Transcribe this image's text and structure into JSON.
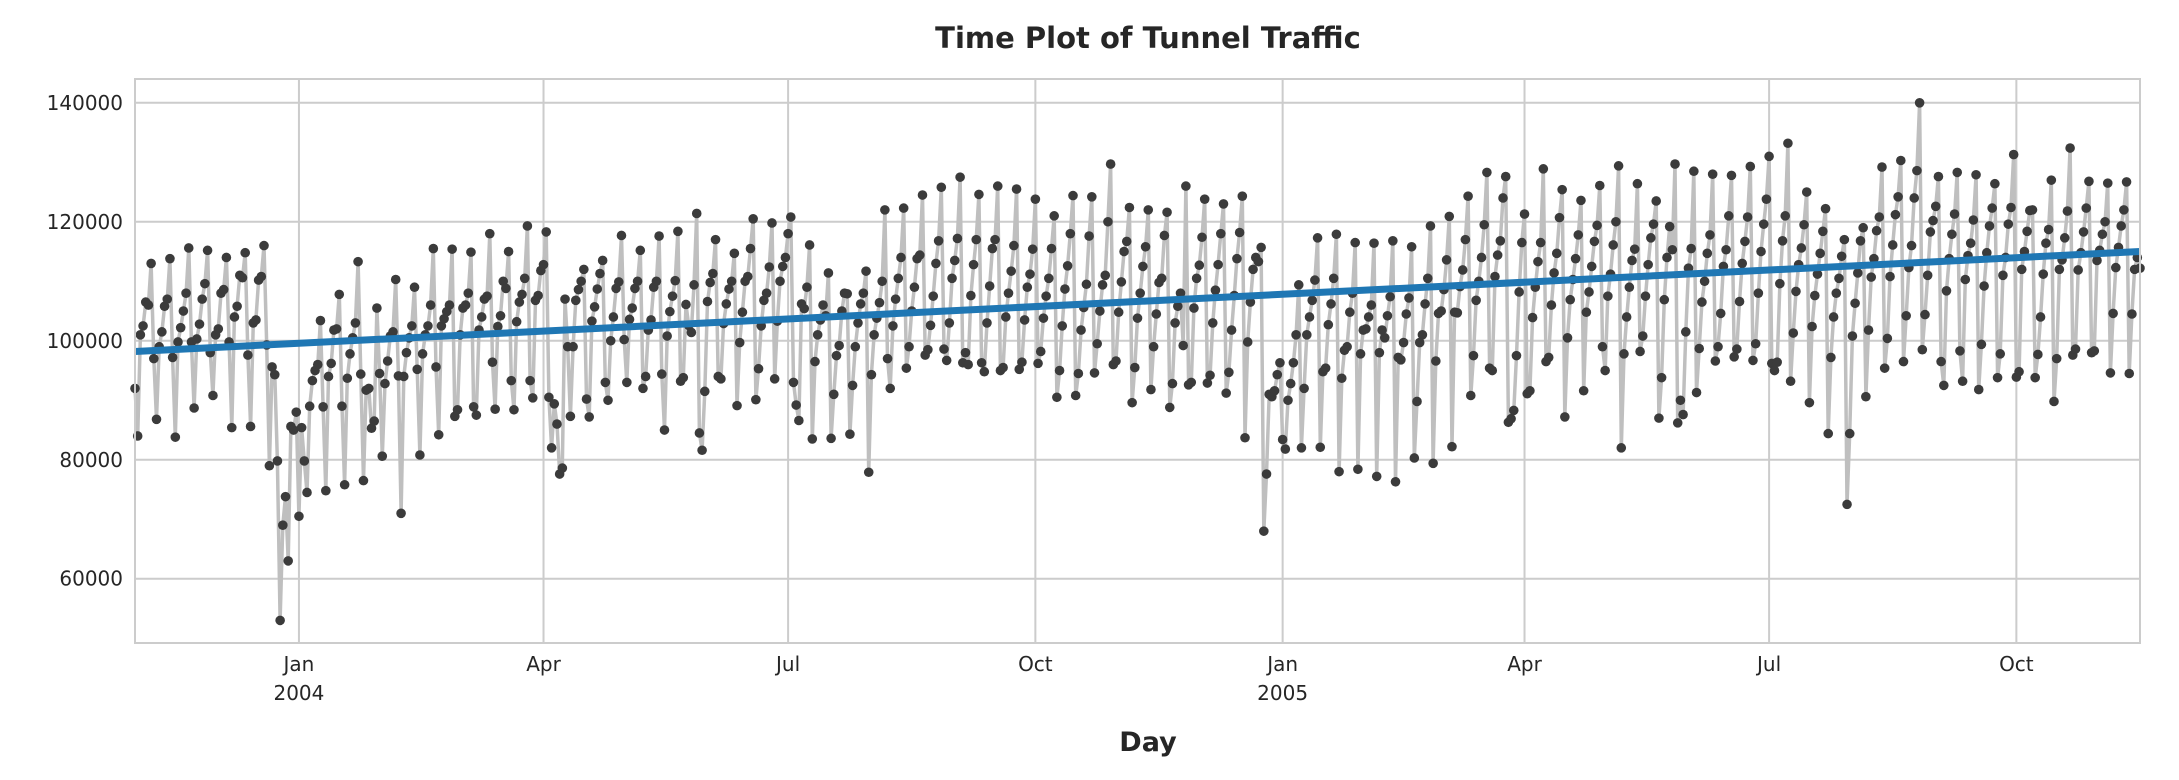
{
  "chart_data": {
    "type": "line",
    "title": "Time Plot of Tunnel Traffic",
    "xlabel": "Day",
    "ylabel": "",
    "x_start": "2003-11-01",
    "x_end": "2005-11-16",
    "x_frequency": "daily",
    "ylim": [
      49200,
      144000
    ],
    "grid": true,
    "y_ticks": [
      60000,
      80000,
      100000,
      120000,
      140000
    ],
    "y_tick_labels": [
      "60000",
      "80000",
      "100000",
      "120000",
      "140000"
    ],
    "x_ticks": [
      {
        "date": "2004-01-01",
        "label": "Jan",
        "sublabel": "2004"
      },
      {
        "date": "2004-04-01",
        "label": "Apr",
        "sublabel": ""
      },
      {
        "date": "2004-07-01",
        "label": "Jul",
        "sublabel": ""
      },
      {
        "date": "2004-10-01",
        "label": "Oct",
        "sublabel": ""
      },
      {
        "date": "2005-01-01",
        "label": "Jan",
        "sublabel": "2005"
      },
      {
        "date": "2005-04-01",
        "label": "Apr",
        "sublabel": ""
      },
      {
        "date": "2005-07-01",
        "label": "Jul",
        "sublabel": ""
      },
      {
        "date": "2005-10-01",
        "label": "Oct",
        "sublabel": ""
      }
    ],
    "colors": {
      "line": "#bfbfbf",
      "markers": "#3b3b3b",
      "trend": "#1f77b4",
      "grid": "#cccccc"
    },
    "trend": {
      "type": "linear",
      "start_value": 98200,
      "end_value": 115000
    },
    "values": [
      92000,
      84000,
      101000,
      102500,
      106500,
      106000,
      113000,
      97000,
      86800,
      99000,
      101500,
      105800,
      107000,
      113800,
      97200,
      83800,
      99800,
      102200,
      105000,
      108000,
      115600,
      99800,
      88700,
      100300,
      102800,
      107000,
      109600,
      115200,
      98000,
      90800,
      101000,
      102000,
      108000,
      108600,
      114000,
      99800,
      85400,
      104000,
      105800,
      111000,
      110600,
      114800,
      97600,
      85600,
      103000,
      103500,
      110200,
      110800,
      116000,
      99300,
      79000,
      95600,
      94300,
      79800,
      53000,
      69000,
      73800,
      63000,
      85600,
      85000,
      88000,
      70500,
      85400,
      79800,
      74500,
      89000,
      93300,
      95000,
      96000,
      103400,
      88900,
      74800,
      94000,
      96200,
      101800,
      102000,
      107800,
      89000,
      75800,
      93700,
      97800,
      100500,
      103000,
      113300,
      94400,
      76500,
      91700,
      92000,
      85300,
      86500,
      105500,
      94500,
      80600,
      92800,
      96600,
      100800,
      101500,
      110300,
      94100,
      71000,
      94000,
      98000,
      100500,
      102500,
      109000,
      95200,
      80800,
      97800,
      101000,
      102500,
      106000,
      115500,
      95600,
      84200,
      102500,
      103700,
      104900,
      106000,
      115400,
      87300,
      88400,
      101000,
      105500,
      106000,
      108000,
      114900,
      88900,
      87500,
      101800,
      104000,
      107000,
      107500,
      118000,
      96400,
      88500,
      102400,
      104200,
      110000,
      108800,
      115000,
      93300,
      88400,
      103200,
      106500,
      107800,
      110500,
      119300,
      93300,
      90400,
      106800,
      107600,
      111800,
      112800,
      118300,
      90500,
      82000,
      89400,
      86000,
      77600,
      78600,
      107000,
      99000,
      87300,
      99000,
      106800,
      108600,
      110000,
      112000,
      90200,
      87200,
      103300,
      105700,
      108700,
      111300,
      113500,
      93000,
      90000,
      100000,
      104000,
      108800,
      109900,
      117700,
      100200,
      93000,
      103600,
      105500,
      108800,
      110000,
      115200,
      92000,
      94000,
      101800,
      103500,
      109000,
      110000,
      117600,
      94400,
      85000,
      100800,
      104900,
      107500,
      110100,
      118400,
      93200,
      93800,
      106100,
      102600,
      101400,
      109400,
      121400,
      84500,
      81600,
      91500,
      106600,
      109800,
      111300,
      117000,
      94000,
      93600,
      102900,
      106200,
      108700,
      110000,
      114700,
      89100,
      99700,
      104800,
      110000,
      110800,
      115500,
      120500,
      90100,
      95300,
      102500,
      106800,
      108000,
      112400,
      119800,
      93600,
      103300,
      110000,
      112500,
      114000,
      118000,
      120800,
      93000,
      89200,
      86600,
      106200,
      105400,
      109000,
      116100,
      83500,
      96500,
      101000,
      103500,
      106000,
      104200,
      111400,
      83600,
      91000,
      97500,
      99200,
      105000,
      108000,
      107900,
      84300,
      92500,
      99000,
      103000,
      106200,
      108000,
      111700,
      77900,
      94300,
      101000,
      103800,
      106400,
      110000,
      122000,
      97000,
      92000,
      102500,
      107000,
      110500,
      114000,
      122300,
      95400,
      99000,
      105000,
      109000,
      113800,
      114400,
      124500,
      97600,
      98500,
      102600,
      107500,
      113000,
      116800,
      125800,
      98600,
      96700,
      103000,
      110500,
      113500,
      117200,
      127500,
      96300,
      98000,
      96000,
      107600,
      112800,
      117000,
      124600,
      96300,
      94800,
      103000,
      109200,
      115500,
      117000,
      126000,
      95000,
      95500,
      104000,
      108000,
      111700,
      116000,
      125500,
      95200,
      96400,
      103500,
      109000,
      111200,
      115400,
      123800,
      96200,
      98200,
      103800,
      107500,
      110500,
      115500,
      121000,
      90500,
      95000,
      102500,
      108700,
      112600,
      118000,
      124400,
      90800,
      94500,
      101800,
      105600,
      109500,
      117600,
      124200,
      94600,
      99500,
      105000,
      109400,
      111000,
      120000,
      129700,
      96000,
      96600,
      104800,
      109900,
      115000,
      116700,
      122400,
      89600,
      95500,
      103800,
      108000,
      112500,
      115800,
      122000,
      91800,
      99000,
      104500,
      109800,
      110500,
      117700,
      121600,
      88800,
      92800,
      103000,
      105800,
      108000,
      99200,
      126000,
      92600,
      93000,
      105500,
      110500,
      112700,
      117400,
      123800,
      92900,
      94200,
      103000,
      108500,
      112800,
      118000,
      123000,
      91200,
      94700,
      101800,
      107600,
      113800,
      118200,
      124300,
      83700,
      99800,
      106500,
      112000,
      114000,
      113300,
      115700,
      68000,
      77600,
      91000,
      90600,
      91600,
      94300,
      96300,
      83400,
      81800,
      90000,
      92800,
      96300,
      101000,
      109400,
      82000,
      92000,
      101000,
      104000,
      106800,
      110200,
      117300,
      82100,
      94800,
      95400,
      102700,
      106200,
      110500,
      117900,
      78000,
      93700,
      98400,
      99000,
      104800,
      108000,
      116500,
      78400,
      97800,
      101800,
      102000,
      104000,
      106000,
      116400,
      77200,
      98000,
      101800,
      100500,
      104200,
      107400,
      116800,
      76300,
      97200,
      96800,
      99700,
      104500,
      107200,
      115800,
      80300,
      89800,
      99700,
      101000,
      106200,
      110500,
      119300,
      79400,
      96600,
      104600,
      105000,
      108600,
      113600,
      120900,
      82200,
      104800,
      104700,
      109100,
      111900,
      117000,
      124300,
      90800,
      97500,
      106800,
      110000,
      114000,
      119500,
      128300,
      95400,
      95000,
      110800,
      114400,
      116800,
      124000,
      127600,
      86300,
      86900,
      88300,
      97500,
      108200,
      116500,
      121300,
      91100,
      91600,
      103900,
      109000,
      113300,
      116500,
      128900,
      96500,
      97200,
      106000,
      111400,
      114700,
      120700,
      125400,
      87200,
      100500,
      106900,
      110300,
      113800,
      117800,
      123600,
      91600,
      104800,
      108200,
      112500,
      116700,
      119400,
      126100,
      99000,
      95000,
      107500,
      111200,
      116100,
      120000,
      129400,
      82000,
      97800,
      104000,
      109000,
      113500,
      115400,
      126400,
      98200,
      100800,
      107500,
      112800,
      117300,
      119600,
      123500,
      87000,
      93800,
      106900,
      114000,
      119200,
      115300,
      129700,
      86200,
      90000,
      87600,
      101500,
      112200,
      115500,
      128500,
      91300,
      98700,
      106500,
      110000,
      114700,
      117800,
      128000,
      96600,
      99000,
      104600,
      112500,
      115300,
      121000,
      127800,
      97300,
      98600,
      106600,
      113000,
      116700,
      120800,
      129300,
      96700,
      99500,
      108000,
      115000,
      119600,
      123800,
      131000,
      96200,
      95000,
      96400,
      109600,
      116800,
      121000,
      133200,
      93200,
      101300,
      108300,
      112800,
      115600,
      119500,
      125000,
      89600,
      102400,
      107600,
      111200,
      114700,
      118400,
      122200,
      84400,
      97200,
      104000,
      108000,
      110500,
      114200,
      117000,
      72500,
      84400,
      100800,
      106300,
      111400,
      116800,
      119000,
      90600,
      101800,
      110700,
      113800,
      118500,
      120800,
      129200,
      95400,
      100400,
      110800,
      116100,
      121200,
      124200,
      130300,
      96500,
      104200,
      112300,
      116000,
      124000,
      128600,
      140000,
      98500,
      104400,
      111000,
      118300,
      120200,
      122600,
      127600,
      96500,
      92500,
      108400,
      113800,
      117900,
      121300,
      128300,
      98300,
      93200,
      110300,
      114300,
      116400,
      120300,
      127900,
      91800,
      99400,
      109200,
      114800,
      119300,
      122300,
      126400,
      93800,
      97800,
      111000,
      114000,
      119600,
      122400,
      131300,
      93900,
      94800,
      112000,
      115000,
      118400,
      121900,
      122000,
      93800,
      97700,
      104000,
      111200,
      116400,
      118700,
      127000,
      89800,
      97000,
      112000,
      113600,
      117300,
      121800,
      132400,
      97600,
      98600,
      111900,
      114800,
      118300,
      122300,
      126800,
      98000,
      98300,
      113500,
      115200,
      117900,
      120000,
      126500,
      94600,
      104600,
      112300,
      115700,
      119300,
      122000,
      126700,
      94500,
      104500,
      112000,
      114000,
      112200
    ]
  }
}
